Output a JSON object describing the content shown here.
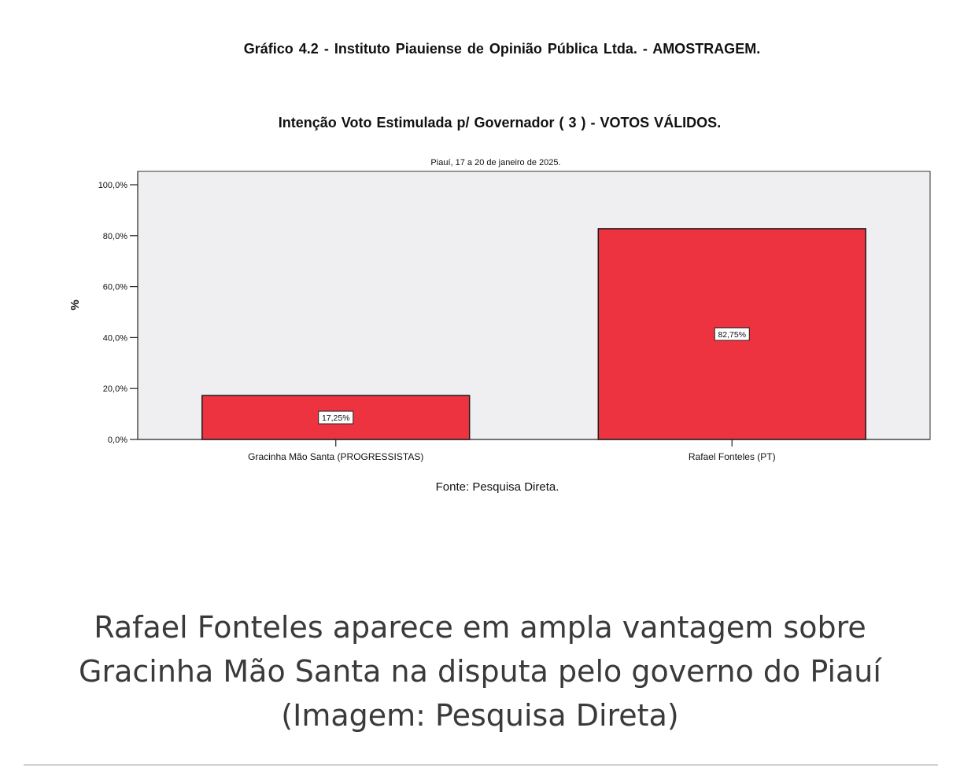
{
  "figure_header": "Gráfico 4.2 - Instituto Piauiense de Opinião Pública Ltda. - AMOSTRAGEM.",
  "source_note": "Fonte: Pesquisa Direta.",
  "caption": {
    "line1": "Rafael Fonteles aparece em ampla vantagem sobre",
    "line2": "Gracinha Mão Santa na disputa pelo governo do Piauí",
    "line3": "(Imagem: Pesquisa Direta)"
  },
  "colors": {
    "bar_fill": "#ee3340",
    "bar_stroke": "#1a1a1a",
    "plot_background": "#efeff2",
    "caption_text": "#3a3a3a",
    "rule": "#d2d2d2"
  },
  "chart_data": {
    "type": "bar",
    "title": "Intenção Voto Estimulada p/ Governador ( 3 ) - VOTOS VÁLIDOS.",
    "subtitle": "Piauí, 17 a 20 de janeiro de 2025.",
    "categories": [
      "Gracinha Mão Santa (PROGRESSISTAS)",
      "Rafael Fonteles (PT)"
    ],
    "values": [
      17.25,
      82.75
    ],
    "data_labels": [
      "17,25%",
      "82,75%"
    ],
    "xlabel": "",
    "ylabel": "%",
    "ylim": [
      0,
      100
    ],
    "yticks": [
      0,
      20,
      40,
      60,
      80,
      100
    ],
    "ytick_labels": [
      "0,0%",
      "20,0%",
      "40,0%",
      "60,0%",
      "80,0%",
      "100,0%"
    ],
    "grid": false,
    "legend": "none"
  }
}
